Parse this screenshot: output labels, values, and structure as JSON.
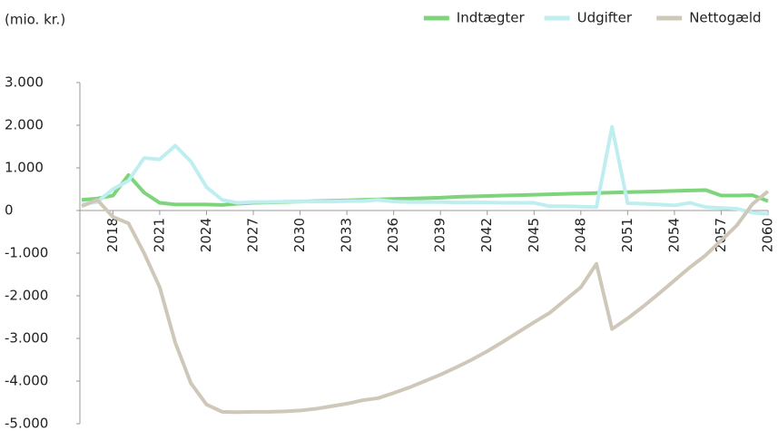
{
  "chart_data": {
    "type": "line",
    "subtitle": "(mio. kr.)",
    "x": [
      2016,
      2017,
      2018,
      2019,
      2020,
      2021,
      2022,
      2023,
      2024,
      2025,
      2026,
      2027,
      2028,
      2029,
      2030,
      2031,
      2032,
      2033,
      2034,
      2035,
      2036,
      2037,
      2038,
      2039,
      2040,
      2041,
      2042,
      2043,
      2044,
      2045,
      2046,
      2047,
      2048,
      2049,
      2050,
      2051,
      2052,
      2053,
      2054,
      2055,
      2056,
      2057,
      2058,
      2059,
      2060
    ],
    "series": [
      {
        "name": "Indtægter",
        "color": "#7ed47a",
        "values": [
          250,
          280,
          350,
          830,
          420,
          180,
          140,
          140,
          140,
          130,
          160,
          180,
          190,
          200,
          210,
          220,
          230,
          240,
          250,
          260,
          270,
          280,
          290,
          300,
          320,
          330,
          340,
          350,
          360,
          370,
          380,
          390,
          400,
          410,
          420,
          430,
          440,
          450,
          460,
          470,
          480,
          350,
          350,
          360,
          220
        ]
      },
      {
        "name": "Udgifter",
        "color": "#bfeef0",
        "values": [
          150,
          200,
          500,
          700,
          1230,
          1200,
          1520,
          1150,
          550,
          250,
          180,
          200,
          200,
          210,
          210,
          210,
          210,
          220,
          220,
          250,
          210,
          200,
          200,
          200,
          190,
          190,
          190,
          180,
          180,
          180,
          100,
          100,
          90,
          80,
          1960,
          170,
          160,
          140,
          120,
          180,
          80,
          60,
          40,
          -50,
          -80
        ]
      },
      {
        "name": "Nettogæld",
        "color": "#cfc8b9",
        "values": [
          100,
          250,
          -150,
          -300,
          -1000,
          -1800,
          -3100,
          -4050,
          -4550,
          -4720,
          -4730,
          -4720,
          -4720,
          -4710,
          -4690,
          -4650,
          -4590,
          -4530,
          -4450,
          -4400,
          -4280,
          -4150,
          -4000,
          -3850,
          -3680,
          -3500,
          -3300,
          -3080,
          -2850,
          -2620,
          -2400,
          -2100,
          -1800,
          -1250,
          -2780,
          -2530,
          -2250,
          -1950,
          -1640,
          -1330,
          -1050,
          -700,
          -350,
          150,
          450
        ]
      }
    ],
    "xlim": [
      2016,
      2060
    ],
    "xticks": [
      2018,
      2021,
      2024,
      2027,
      2030,
      2033,
      2036,
      2039,
      2042,
      2045,
      2048,
      2051,
      2054,
      2057,
      2060
    ],
    "ylim": [
      -5000,
      3000
    ],
    "yticks": [
      {
        "value": 3000,
        "label": "3.000"
      },
      {
        "value": 2000,
        "label": "2.000"
      },
      {
        "value": 1000,
        "label": "1.000"
      },
      0,
      {
        "value": -1000,
        "label": "-1.000"
      },
      {
        "value": -2000,
        "label": "-2.000"
      },
      {
        "value": -3000,
        "label": "-3.000"
      },
      {
        "value": -4000,
        "label": "-4.000"
      },
      {
        "value": -5000,
        "label": "-5.000"
      }
    ],
    "legend": "top-right"
  }
}
